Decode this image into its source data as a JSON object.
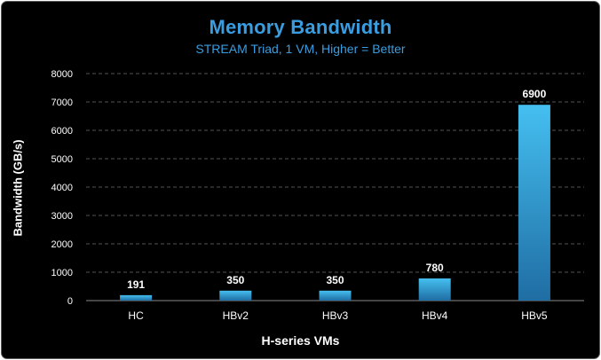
{
  "colors": {
    "background": "#000000",
    "title": "#3a9de0",
    "subtitle": "#3a9de0",
    "text": "#ffffff",
    "gridline": "#555555",
    "bar_top": "#45bff0",
    "bar_bottom": "#1f6da3"
  },
  "chart_data": {
    "type": "bar",
    "title": "Memory Bandwidth",
    "subtitle": "STREAM Triad, 1 VM, Higher = Better",
    "xlabel": "H-series VMs",
    "ylabel": "Bandwidth (GB/s)",
    "categories": [
      "HC",
      "HBv2",
      "HBv3",
      "HBv4",
      "HBv5"
    ],
    "values": [
      191,
      350,
      350,
      780,
      6900
    ],
    "data_labels": [
      "191",
      "350",
      "350",
      "780",
      "6900"
    ],
    "ylim": [
      0,
      8000
    ],
    "yticks": [
      0,
      1000,
      2000,
      3000,
      4000,
      5000,
      6000,
      7000,
      8000
    ],
    "grid": true,
    "grid_style": "dashed",
    "legend": "none"
  }
}
